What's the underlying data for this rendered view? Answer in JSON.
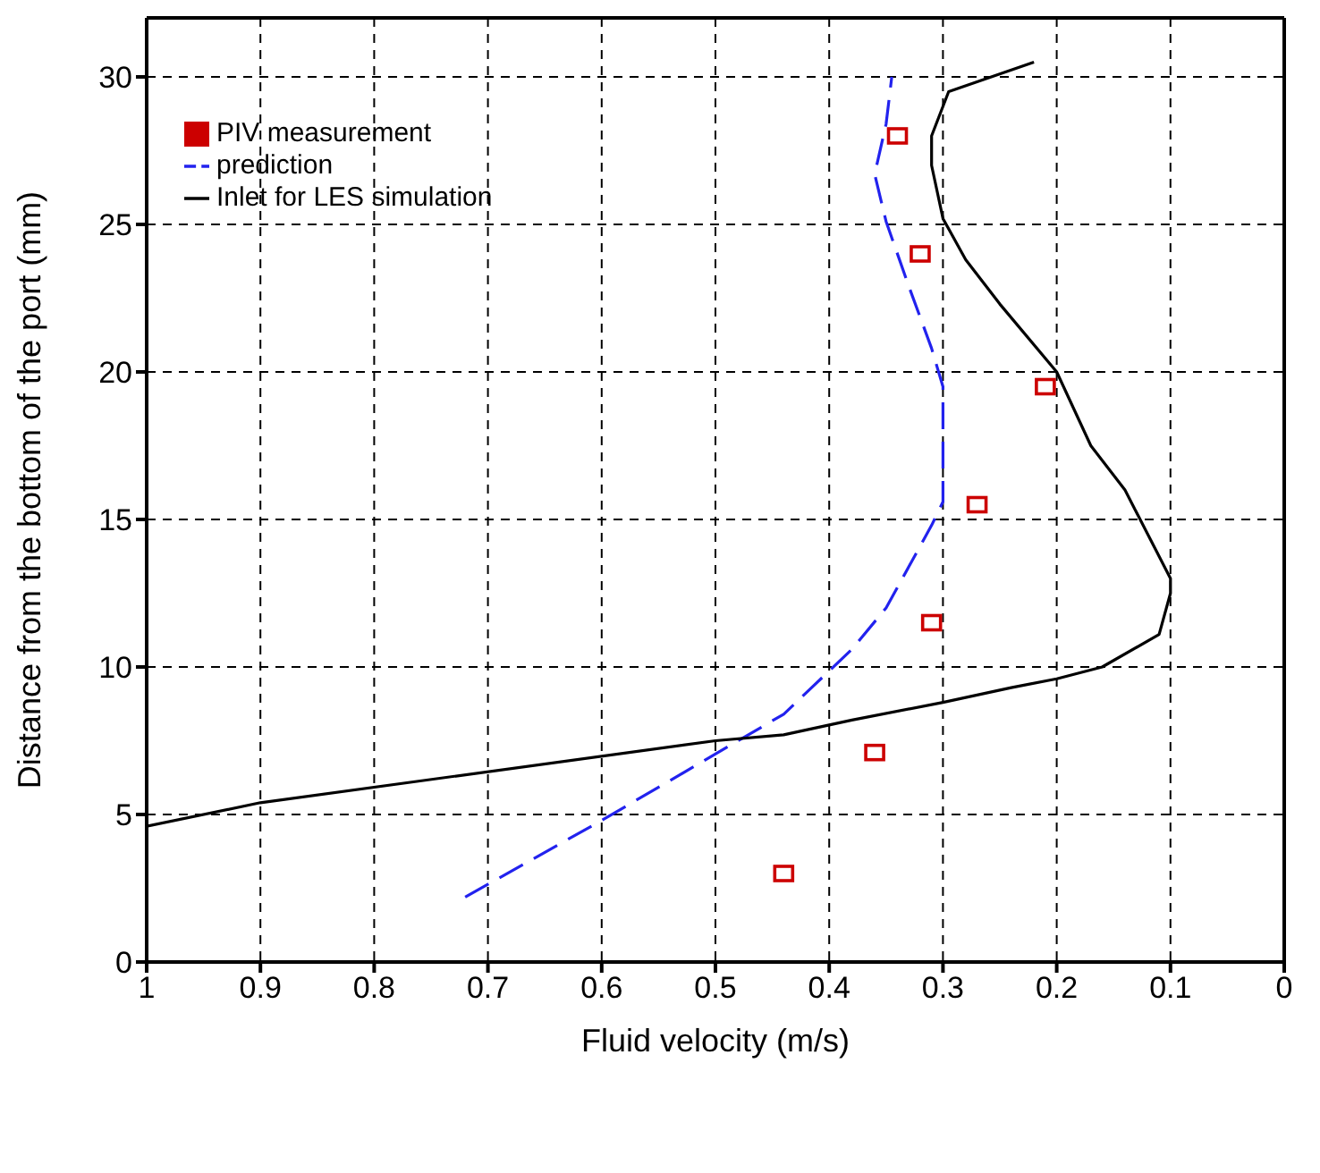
{
  "chart_data": {
    "type": "line",
    "xlabel": "Fluid velocity (m/s)",
    "ylabel": "Distance from the bottom of the port (mm)",
    "xlim": [
      1,
      0
    ],
    "ylim": [
      0,
      32
    ],
    "xticks": [
      1,
      0.9,
      0.8,
      0.7,
      0.6,
      0.5,
      0.4,
      0.3,
      0.2,
      0.1,
      0
    ],
    "yticks": [
      0,
      5,
      10,
      15,
      20,
      25,
      30
    ],
    "grid": true,
    "legend": "top left",
    "series": [
      {
        "name": "PIV measurement",
        "type": "scatter",
        "marker": "square",
        "color": "#cc0000",
        "x": [
          0.34,
          0.32,
          0.21,
          0.27,
          0.31,
          0.36,
          0.44
        ],
        "values": [
          28,
          24,
          19.5,
          15.5,
          11.5,
          7.1,
          3
        ]
      },
      {
        "name": "prediction",
        "line_style": "dashed",
        "color": "#2222ee",
        "x": [
          0.72,
          0.6,
          0.44,
          0.38,
          0.35,
          0.31,
          0.3,
          0.3,
          0.3,
          0.31,
          0.33,
          0.35,
          0.36,
          0.35,
          0.345
        ],
        "values": [
          2.2,
          4.8,
          8.4,
          10.6,
          12,
          14.8,
          15.6,
          16.5,
          19.5,
          20.8,
          22.9,
          25.1,
          26.7,
          28.4,
          30
        ]
      },
      {
        "name": "Inlet for LES simulation",
        "line_style": "solid",
        "color": "#000000",
        "x": [
          1,
          0.9,
          0.5,
          0.44,
          0.38,
          0.3,
          0.24,
          0.2,
          0.16,
          0.11,
          0.1,
          0.1,
          0.12,
          0.14,
          0.17,
          0.2,
          0.25,
          0.28,
          0.3,
          0.31,
          0.31,
          0.295,
          0.22
        ],
        "values": [
          4.6,
          5.4,
          7.5,
          7.7,
          8.2,
          8.8,
          9.3,
          9.6,
          10,
          11.1,
          12.5,
          13,
          14.5,
          16,
          17.5,
          20,
          22.3,
          23.8,
          25.2,
          27,
          28,
          29.5,
          30.5
        ]
      }
    ]
  }
}
